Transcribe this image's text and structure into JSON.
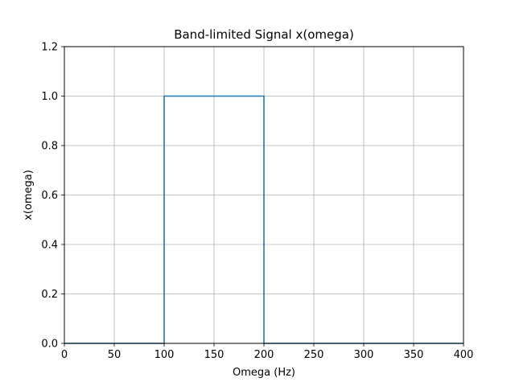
{
  "chart_data": {
    "type": "line",
    "title": "Band-limited Signal x(omega)",
    "xlabel": "Omega (Hz)",
    "ylabel": "x(omega)",
    "xlim": [
      0,
      400
    ],
    "ylim": [
      0,
      1.2
    ],
    "x_ticks": [
      0,
      50,
      100,
      150,
      200,
      250,
      300,
      350,
      400
    ],
    "y_ticks": [
      0.0,
      0.2,
      0.4,
      0.6,
      0.8,
      1.0,
      1.2
    ],
    "x_tick_labels": [
      "0",
      "50",
      "100",
      "150",
      "200",
      "250",
      "300",
      "350",
      "400"
    ],
    "y_tick_labels": [
      "0.0",
      "0.2",
      "0.4",
      "0.6",
      "0.8",
      "1.0",
      "1.2"
    ],
    "grid": true,
    "series": [
      {
        "color": "#1f77b4",
        "x": [
          0,
          100,
          100,
          200,
          200,
          400
        ],
        "y": [
          0,
          0,
          1,
          1,
          0,
          0
        ]
      }
    ],
    "colors": {
      "line": "#1f77b4",
      "grid": "#b0b0b0",
      "axes": "#000000"
    }
  }
}
